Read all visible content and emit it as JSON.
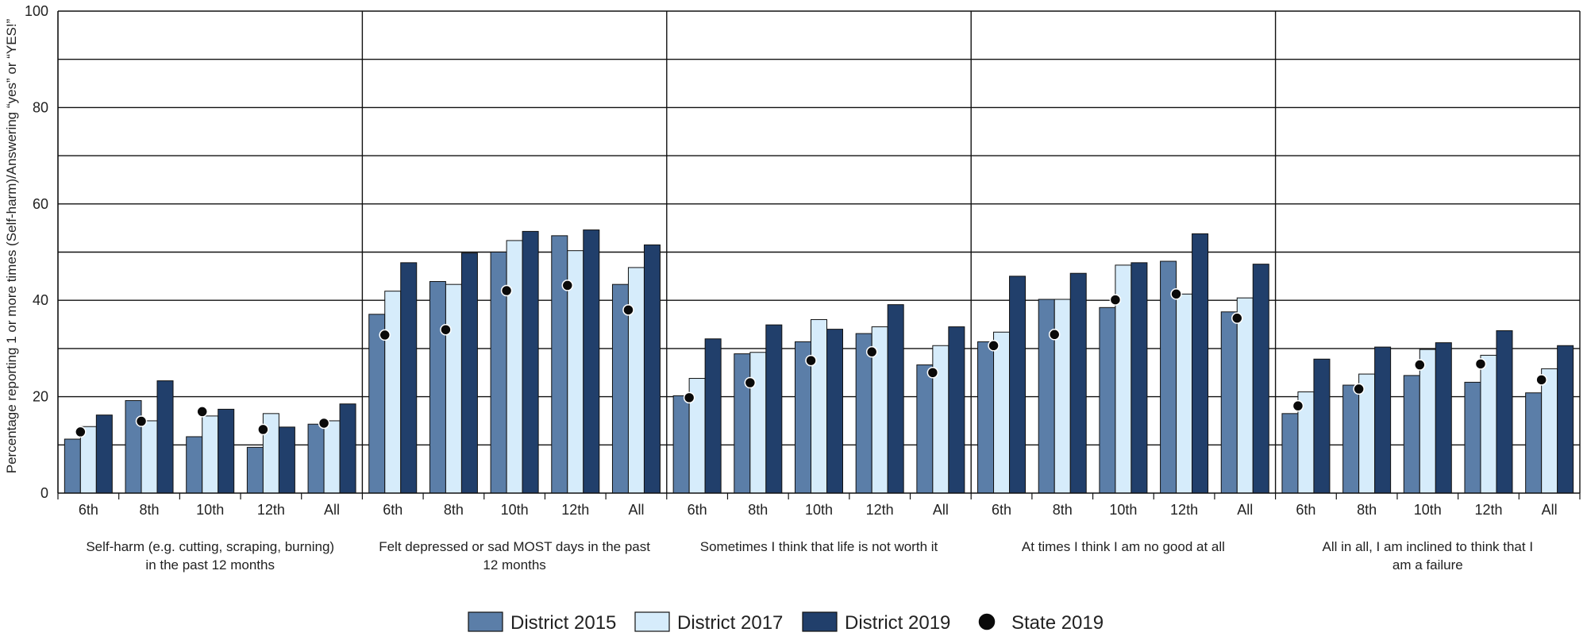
{
  "colors": {
    "district_2015": "#5b7ea8",
    "district_2017": "#d6ecfb",
    "district_2019": "#213f6b",
    "state_2019": "#0a0a0a",
    "grid": "#111111"
  },
  "chart_data": {
    "type": "bar",
    "ylabel": "Percentage reporting 1 or more times (Self-harm)/Answering “yes” or “YES!”",
    "ylim": [
      0,
      100
    ],
    "yticks": [
      "0",
      "20",
      "40",
      "60",
      "80",
      "100"
    ],
    "gridlines": [
      10,
      20,
      30,
      40,
      50,
      60,
      70,
      80,
      90,
      100
    ],
    "grades": [
      "6th",
      "8th",
      "10th",
      "12th",
      "All"
    ],
    "groups": [
      {
        "label_line1": "Self-harm (e.g. cutting, scraping, burning)",
        "label_line2": "in the past 12 months",
        "district_2015": [
          11.2,
          19.2,
          11.7,
          9.5,
          14.3
        ],
        "district_2017": [
          13.8,
          15.0,
          16.0,
          16.5,
          15.0
        ],
        "district_2019": [
          16.2,
          23.3,
          17.4,
          13.7,
          18.5
        ],
        "state_2019": [
          12.7,
          14.9,
          16.9,
          13.2,
          14.5
        ]
      },
      {
        "label_line1": "Felt depressed or sad MOST days in the past",
        "label_line2": "12 months",
        "district_2015": [
          37.1,
          43.9,
          50.0,
          53.4,
          43.3
        ],
        "district_2017": [
          41.9,
          43.3,
          52.4,
          50.3,
          46.8
        ],
        "district_2019": [
          47.8,
          49.8,
          54.3,
          54.6,
          51.5
        ],
        "state_2019": [
          32.8,
          33.9,
          42.0,
          43.1,
          38.0
        ]
      },
      {
        "label_line1": "Sometimes I think that life is not worth it",
        "label_line2": "",
        "district_2015": [
          20.2,
          28.9,
          31.4,
          33.1,
          26.6
        ],
        "district_2017": [
          23.8,
          29.2,
          36.0,
          34.5,
          30.6
        ],
        "district_2019": [
          32.0,
          34.9,
          34.0,
          39.1,
          34.5
        ],
        "state_2019": [
          19.8,
          22.9,
          27.5,
          29.3,
          25.0
        ]
      },
      {
        "label_line1": "At times I think I am no good at all",
        "label_line2": "",
        "district_2015": [
          31.4,
          40.2,
          38.5,
          48.1,
          37.6
        ],
        "district_2017": [
          33.4,
          40.2,
          47.3,
          41.3,
          40.5
        ],
        "district_2019": [
          45.0,
          45.6,
          47.8,
          53.8,
          47.5
        ],
        "state_2019": [
          30.6,
          32.9,
          40.1,
          41.3,
          36.3
        ]
      },
      {
        "label_line1": "All in all, I am inclined to think that I",
        "label_line2": "am a failure",
        "district_2015": [
          16.5,
          22.4,
          24.4,
          23.0,
          20.8
        ],
        "district_2017": [
          21.0,
          24.7,
          29.8,
          28.6,
          25.8
        ],
        "district_2019": [
          27.8,
          30.3,
          31.2,
          33.7,
          30.6
        ],
        "state_2019": [
          18.1,
          21.6,
          26.6,
          26.8,
          23.5
        ]
      }
    ],
    "legend": [
      "District 2015",
      "District 2017",
      "District 2019",
      "State 2019"
    ],
    "legend_position": "bottom"
  }
}
